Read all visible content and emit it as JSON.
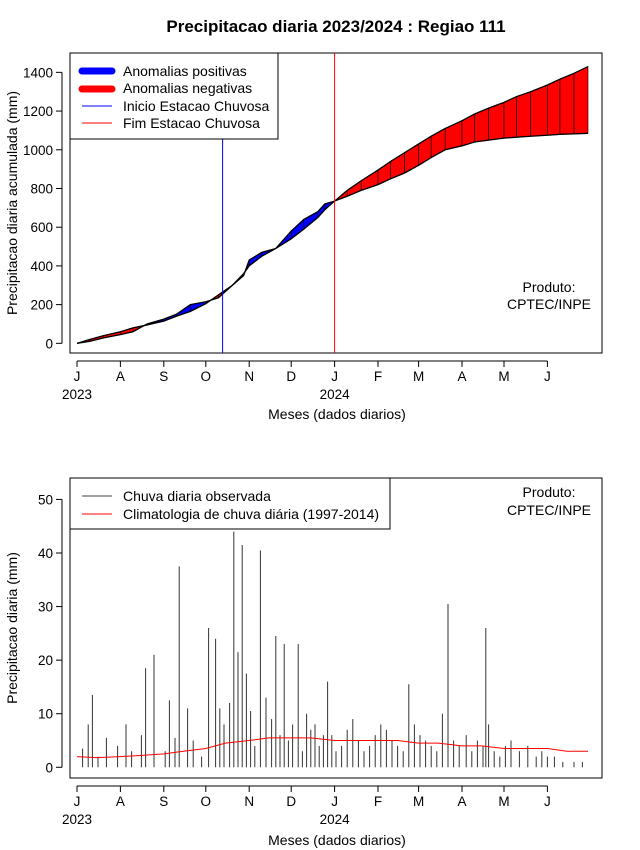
{
  "title": "Precipitacao diaria 2023/2024 : Regiao 111",
  "colors": {
    "positive": "#0000ff",
    "negative": "#ff0000",
    "start_line": "#0000ff",
    "end_line": "#ff0000",
    "observed": "#000000",
    "climatology": "#ff0000"
  },
  "chart_data": [
    {
      "type": "area",
      "ylabel": "Precipitacao diaria acumulada (mm)",
      "xlabel": "Meses (dados diarios)",
      "x_ticks": [
        "J",
        "A",
        "S",
        "O",
        "N",
        "D",
        "J",
        "F",
        "M",
        "A",
        "M",
        "J"
      ],
      "x_year_labels": [
        {
          "label": "2023",
          "month_index": 0
        },
        {
          "label": "2024",
          "month_index": 6
        }
      ],
      "y_ticks": [
        0,
        200,
        400,
        600,
        800,
        1000,
        1200,
        1400
      ],
      "ylim": [
        -50,
        1500
      ],
      "xlim_days": [
        -5,
        375
      ],
      "legend": {
        "placement": "top-left",
        "entries": [
          "Anomalias positivas",
          "Anomalias negativas",
          "Inicio Estacao Chuvosa",
          "Fim Estacao Chuvosa"
        ]
      },
      "annotation": [
        "Produto:",
        "CPTEC/INPE"
      ],
      "vertical_lines": {
        "inicio_estacao_chuvosa": "2023-10-13",
        "fim_estacao_chuvosa": "2024-01-01"
      },
      "series": [
        {
          "name": "observed_accumulated",
          "x_dates": [
            "2023-07-01",
            "2023-07-10",
            "2023-07-20",
            "2023-08-01",
            "2023-08-10",
            "2023-08-20",
            "2023-09-01",
            "2023-09-10",
            "2023-09-20",
            "2023-10-01",
            "2023-10-10",
            "2023-10-20",
            "2023-10-28",
            "2023-11-01",
            "2023-11-10",
            "2023-11-20",
            "2023-12-01",
            "2023-12-10",
            "2023-12-20",
            "2023-12-25",
            "2024-01-01",
            "2024-01-10",
            "2024-01-20",
            "2024-02-01",
            "2024-02-10",
            "2024-02-20",
            "2024-03-01",
            "2024-03-10",
            "2024-03-20",
            "2024-04-01",
            "2024-04-10",
            "2024-04-20",
            "2024-05-01",
            "2024-05-10",
            "2024-05-20",
            "2024-06-01",
            "2024-06-10",
            "2024-06-20",
            "2024-06-30"
          ],
          "values": [
            0,
            10,
            28,
            45,
            60,
            100,
            125,
            150,
            200,
            215,
            235,
            300,
            350,
            430,
            470,
            490,
            580,
            640,
            680,
            720,
            735,
            760,
            790,
            820,
            850,
            880,
            920,
            960,
            1000,
            1020,
            1040,
            1050,
            1060,
            1065,
            1070,
            1075,
            1080,
            1082,
            1085
          ]
        },
        {
          "name": "climatology_accumulated",
          "x_dates": [
            "2023-07-01",
            "2023-07-10",
            "2023-07-20",
            "2023-08-01",
            "2023-08-10",
            "2023-08-20",
            "2023-09-01",
            "2023-09-10",
            "2023-09-20",
            "2023-10-01",
            "2023-10-10",
            "2023-10-20",
            "2023-10-28",
            "2023-11-01",
            "2023-11-10",
            "2023-11-20",
            "2023-12-01",
            "2023-12-10",
            "2023-12-20",
            "2023-12-25",
            "2024-01-01",
            "2024-01-10",
            "2024-01-20",
            "2024-02-01",
            "2024-02-10",
            "2024-02-20",
            "2024-03-01",
            "2024-03-10",
            "2024-03-20",
            "2024-04-01",
            "2024-04-10",
            "2024-04-20",
            "2024-05-01",
            "2024-05-10",
            "2024-05-20",
            "2024-06-01",
            "2024-06-10",
            "2024-06-20",
            "2024-06-30"
          ],
          "values": [
            0,
            20,
            40,
            60,
            80,
            95,
            115,
            140,
            165,
            205,
            250,
            300,
            360,
            400,
            450,
            490,
            540,
            590,
            650,
            690,
            735,
            790,
            840,
            895,
            940,
            985,
            1030,
            1070,
            1110,
            1150,
            1185,
            1215,
            1245,
            1275,
            1300,
            1335,
            1365,
            1395,
            1430
          ]
        }
      ]
    },
    {
      "type": "line",
      "ylabel": "Precipitacao diaria (mm)",
      "xlabel": "Meses (dados diarios)",
      "x_ticks": [
        "J",
        "A",
        "S",
        "O",
        "N",
        "D",
        "J",
        "F",
        "M",
        "A",
        "M",
        "J"
      ],
      "x_year_labels": [
        {
          "label": "2023",
          "month_index": 0
        },
        {
          "label": "2024",
          "month_index": 6
        }
      ],
      "y_ticks": [
        0,
        10,
        20,
        30,
        40,
        50
      ],
      "ylim": [
        -2,
        54
      ],
      "xlim_days": [
        -5,
        375
      ],
      "legend": {
        "placement": "top-left",
        "entries": [
          "Chuva diaria observada",
          "Climatologia de chuva diária (1997-2014)"
        ]
      },
      "annotation": [
        "Produto:",
        "CPTEC/INPE"
      ],
      "series": [
        {
          "name": "Chuva diaria observada",
          "x_dates": [
            "2023-07-05",
            "2023-07-09",
            "2023-07-12",
            "2023-07-16",
            "2023-07-22",
            "2023-07-30",
            "2023-08-05",
            "2023-08-09",
            "2023-08-16",
            "2023-08-19",
            "2023-08-25",
            "2023-09-02",
            "2023-09-05",
            "2023-09-09",
            "2023-09-12",
            "2023-09-18",
            "2023-09-22",
            "2023-09-28",
            "2023-10-03",
            "2023-10-08",
            "2023-10-11",
            "2023-10-14",
            "2023-10-18",
            "2023-10-21",
            "2023-10-24",
            "2023-10-27",
            "2023-10-30",
            "2023-11-02",
            "2023-11-05",
            "2023-11-09",
            "2023-11-13",
            "2023-11-17",
            "2023-11-20",
            "2023-11-23",
            "2023-11-26",
            "2023-11-29",
            "2023-12-02",
            "2023-12-06",
            "2023-12-09",
            "2023-12-12",
            "2023-12-15",
            "2023-12-18",
            "2023-12-21",
            "2023-12-24",
            "2023-12-27",
            "2023-12-30",
            "2024-01-02",
            "2024-01-06",
            "2024-01-10",
            "2024-01-14",
            "2024-01-18",
            "2024-01-22",
            "2024-01-26",
            "2024-01-30",
            "2024-02-03",
            "2024-02-07",
            "2024-02-11",
            "2024-02-15",
            "2024-02-19",
            "2024-02-23",
            "2024-02-27",
            "2024-03-02",
            "2024-03-06",
            "2024-03-10",
            "2024-03-14",
            "2024-03-18",
            "2024-03-22",
            "2024-03-26",
            "2024-03-30",
            "2024-04-04",
            "2024-04-08",
            "2024-04-12",
            "2024-04-16",
            "2024-04-18",
            "2024-04-20",
            "2024-04-24",
            "2024-04-28",
            "2024-05-02",
            "2024-05-06",
            "2024-05-12",
            "2024-05-18",
            "2024-05-24",
            "2024-05-28",
            "2024-06-01",
            "2024-06-06",
            "2024-06-12",
            "2024-06-20",
            "2024-06-26"
          ],
          "values": [
            3.5,
            8,
            13.5,
            2,
            5.5,
            4,
            8,
            3,
            6,
            18.5,
            21,
            3,
            12.5,
            5.5,
            37.5,
            11,
            5,
            2,
            26,
            24,
            11,
            8,
            12,
            44,
            21.5,
            41.5,
            17.5,
            10.5,
            4,
            40.5,
            13,
            9,
            24.5,
            6,
            23,
            5,
            8,
            23,
            3,
            10,
            7,
            8,
            4,
            6,
            16,
            6,
            3,
            4,
            7,
            9,
            5,
            3,
            4,
            6,
            8,
            7,
            5,
            4,
            3,
            15.5,
            8,
            6,
            5,
            4,
            3,
            10,
            30.5,
            5,
            4,
            6,
            3,
            5,
            4,
            26,
            8,
            3,
            2,
            4,
            5,
            3,
            4,
            2,
            3,
            2,
            2,
            1,
            1,
            1
          ]
        },
        {
          "name": "Climatologia de chuva diária (1997-2014)",
          "x_dates": [
            "2023-07-01",
            "2023-07-15",
            "2023-08-01",
            "2023-08-15",
            "2023-09-01",
            "2023-09-15",
            "2023-10-01",
            "2023-10-15",
            "2023-11-01",
            "2023-11-15",
            "2023-12-01",
            "2023-12-15",
            "2024-01-01",
            "2024-01-15",
            "2024-02-01",
            "2024-02-15",
            "2024-03-01",
            "2024-03-15",
            "2024-04-01",
            "2024-04-15",
            "2024-05-01",
            "2024-05-15",
            "2024-06-01",
            "2024-06-15",
            "2024-06-30"
          ],
          "values": [
            2,
            1.8,
            2,
            2.2,
            2.5,
            3,
            3.5,
            4.5,
            5,
            5.5,
            5.5,
            5.5,
            5,
            5,
            5,
            5,
            4.5,
            4.5,
            4,
            4,
            3.5,
            3.5,
            3.5,
            3,
            3
          ]
        }
      ]
    }
  ]
}
